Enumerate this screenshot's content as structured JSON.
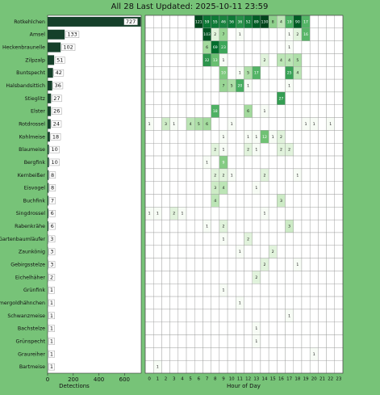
{
  "chart_data": [
    {
      "type": "bar",
      "orientation": "horizontal",
      "title": "All 28 Last Updated: 2025-10-11 23:59",
      "categories": [
        "Rotkehlchen",
        "Amsel",
        "Heckenbraunelle",
        "Zilpzalp",
        "Buntspecht",
        "Halsbandsittich",
        "Stieglitz",
        "Elster",
        "Rotdrossel",
        "Kohlmeise",
        "Blaumeise",
        "Bergfink",
        "Kernbeißer",
        "Eisvogel",
        "Buchfink",
        "Singdrossel",
        "Rabenkrähe",
        "Gartenbaumläufer",
        "Zaunkönig",
        "Gebirgsstelze",
        "Eichelhäher",
        "Grünfink",
        "Sommergoldhähnchen",
        "Schwanzmeise",
        "Bachstelze",
        "Grünspecht",
        "Graureiher",
        "Bartmeise"
      ],
      "values": [
        727,
        133,
        102,
        51,
        42,
        36,
        27,
        26,
        24,
        18,
        10,
        10,
        8,
        8,
        7,
        6,
        6,
        3,
        3,
        3,
        2,
        1,
        1,
        1,
        1,
        1,
        1,
        1
      ],
      "color": "#15402a",
      "xlim": [
        0,
        730
      ],
      "xticks": [
        0,
        200,
        400,
        600
      ],
      "xlabel": "Detections"
    },
    {
      "type": "heatmap",
      "xlabel": "Hour of Day",
      "x": [
        0,
        1,
        2,
        3,
        4,
        5,
        6,
        7,
        8,
        9,
        10,
        11,
        12,
        13,
        14,
        15,
        16,
        17,
        18,
        19,
        20,
        21,
        22,
        23
      ],
      "values": [
        [
          null,
          null,
          null,
          null,
          null,
          null,
          121,
          59,
          55,
          46,
          56,
          36,
          52,
          89,
          130,
          8,
          4,
          19,
          90,
          17,
          null,
          null,
          null,
          null
        ],
        [
          null,
          null,
          null,
          null,
          null,
          null,
          null,
          103,
          2,
          7,
          null,
          1,
          null,
          null,
          null,
          null,
          null,
          1,
          2,
          16,
          null,
          null,
          null,
          null
        ],
        [
          null,
          null,
          null,
          null,
          null,
          null,
          null,
          6,
          69,
          23,
          null,
          null,
          null,
          null,
          null,
          null,
          null,
          1,
          null,
          null,
          null,
          null,
          null,
          null
        ],
        [
          null,
          null,
          null,
          null,
          null,
          null,
          null,
          32,
          13,
          1,
          null,
          null,
          null,
          null,
          2,
          null,
          4,
          4,
          5,
          null,
          null,
          null,
          null,
          null
        ],
        [
          null,
          null,
          null,
          null,
          null,
          null,
          null,
          null,
          null,
          10,
          null,
          1,
          5,
          17,
          null,
          null,
          null,
          25,
          4,
          null,
          null,
          null,
          null,
          null
        ],
        [
          null,
          null,
          null,
          null,
          null,
          null,
          null,
          null,
          null,
          7,
          5,
          20,
          1,
          null,
          null,
          null,
          null,
          1,
          null,
          null,
          null,
          null,
          null,
          null
        ],
        [
          null,
          null,
          null,
          null,
          null,
          null,
          null,
          null,
          null,
          null,
          null,
          null,
          null,
          null,
          null,
          null,
          27,
          null,
          null,
          null,
          null,
          null,
          null,
          null
        ],
        [
          null,
          null,
          null,
          null,
          null,
          null,
          null,
          null,
          18,
          null,
          null,
          null,
          6,
          null,
          1,
          null,
          null,
          null,
          null,
          null,
          null,
          null,
          null,
          null
        ],
        [
          1,
          null,
          3,
          1,
          null,
          4,
          5,
          6,
          null,
          null,
          1,
          null,
          null,
          null,
          null,
          null,
          null,
          null,
          null,
          1,
          1,
          null,
          1,
          null
        ],
        [
          null,
          null,
          null,
          null,
          null,
          null,
          null,
          null,
          null,
          1,
          null,
          null,
          1,
          1,
          12,
          1,
          2,
          null,
          null,
          null,
          null,
          null,
          null,
          null
        ],
        [
          null,
          null,
          null,
          null,
          null,
          null,
          null,
          null,
          2,
          1,
          null,
          null,
          2,
          1,
          null,
          null,
          2,
          2,
          null,
          null,
          null,
          null,
          null,
          null
        ],
        [
          null,
          null,
          null,
          null,
          null,
          null,
          null,
          1,
          null,
          9,
          null,
          null,
          null,
          null,
          null,
          null,
          null,
          null,
          null,
          null,
          null,
          null,
          null,
          null
        ],
        [
          null,
          null,
          null,
          null,
          null,
          null,
          null,
          null,
          2,
          2,
          1,
          null,
          null,
          null,
          2,
          null,
          null,
          null,
          1,
          null,
          null,
          null,
          null,
          null
        ],
        [
          null,
          null,
          null,
          null,
          null,
          null,
          null,
          null,
          3,
          4,
          null,
          null,
          null,
          1,
          null,
          null,
          null,
          null,
          null,
          null,
          null,
          null,
          null,
          null
        ],
        [
          null,
          null,
          null,
          null,
          null,
          null,
          null,
          null,
          4,
          null,
          null,
          null,
          null,
          null,
          null,
          null,
          3,
          null,
          null,
          null,
          null,
          null,
          null,
          null
        ],
        [
          1,
          1,
          null,
          2,
          1,
          null,
          null,
          null,
          null,
          null,
          null,
          null,
          null,
          null,
          1,
          null,
          null,
          null,
          null,
          null,
          null,
          null,
          null,
          null
        ],
        [
          null,
          null,
          null,
          null,
          null,
          null,
          null,
          1,
          null,
          2,
          null,
          null,
          null,
          null,
          null,
          null,
          null,
          3,
          null,
          null,
          null,
          null,
          null,
          null
        ],
        [
          null,
          null,
          null,
          null,
          null,
          null,
          null,
          null,
          null,
          1,
          null,
          null,
          2,
          null,
          null,
          null,
          null,
          null,
          null,
          null,
          null,
          null,
          null,
          null
        ],
        [
          null,
          null,
          null,
          null,
          null,
          null,
          null,
          null,
          null,
          null,
          null,
          1,
          null,
          null,
          null,
          2,
          null,
          null,
          null,
          null,
          null,
          null,
          null,
          null
        ],
        [
          null,
          null,
          null,
          null,
          null,
          null,
          null,
          null,
          null,
          null,
          null,
          null,
          null,
          null,
          2,
          null,
          null,
          null,
          1,
          null,
          null,
          null,
          null,
          null
        ],
        [
          null,
          null,
          null,
          null,
          null,
          null,
          null,
          null,
          null,
          null,
          null,
          null,
          null,
          2,
          null,
          null,
          null,
          null,
          null,
          null,
          null,
          null,
          null,
          null
        ],
        [
          null,
          null,
          null,
          null,
          null,
          null,
          null,
          null,
          null,
          1,
          null,
          null,
          null,
          null,
          null,
          null,
          null,
          null,
          null,
          null,
          null,
          null,
          null,
          null
        ],
        [
          null,
          null,
          null,
          null,
          null,
          null,
          null,
          null,
          null,
          null,
          null,
          1,
          null,
          null,
          null,
          null,
          null,
          null,
          null,
          null,
          null,
          null,
          null,
          null
        ],
        [
          null,
          null,
          null,
          null,
          null,
          null,
          null,
          null,
          null,
          null,
          null,
          null,
          null,
          null,
          null,
          null,
          null,
          1,
          null,
          null,
          null,
          null,
          null,
          null
        ],
        [
          null,
          null,
          null,
          null,
          null,
          null,
          null,
          null,
          null,
          null,
          null,
          null,
          null,
          1,
          null,
          null,
          null,
          null,
          null,
          null,
          null,
          null,
          null,
          null
        ],
        [
          null,
          null,
          null,
          null,
          null,
          null,
          null,
          null,
          null,
          null,
          null,
          null,
          null,
          1,
          null,
          null,
          null,
          null,
          null,
          null,
          null,
          null,
          null,
          null
        ],
        [
          null,
          null,
          null,
          null,
          null,
          null,
          null,
          null,
          null,
          null,
          null,
          null,
          null,
          null,
          null,
          null,
          null,
          null,
          null,
          null,
          1,
          null,
          null,
          null
        ],
        [
          null,
          1,
          null,
          null,
          null,
          null,
          null,
          null,
          null,
          null,
          null,
          null,
          null,
          null,
          null,
          null,
          null,
          null,
          null,
          null,
          null,
          null,
          null,
          null
        ]
      ],
      "colormap": [
        "#f7fcf5",
        "#e5f5e0",
        "#c7e9c0",
        "#a1d99b",
        "#74c476",
        "#41ab5d",
        "#238b45",
        "#006d2c",
        "#00441b"
      ]
    }
  ]
}
